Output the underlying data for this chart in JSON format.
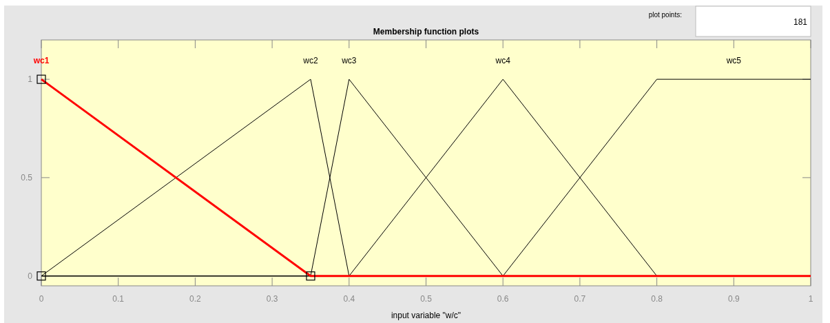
{
  "chart_data": {
    "type": "line",
    "title": "Membership function plots",
    "xlabel": "input variable \"w/c\"",
    "annotations": [
      "plot points:",
      "181"
    ],
    "xlim": [
      0,
      1
    ],
    "xticks": [
      0,
      0.1,
      0.2,
      0.3,
      0.4,
      0.5,
      0.6,
      0.7,
      0.8,
      0.9,
      1
    ],
    "ylim": [
      -0.05,
      1.2
    ],
    "yticks": [
      0,
      0.5,
      1
    ],
    "grid": false,
    "line_style": "solid",
    "series": [
      {
        "name": "wc2",
        "color": "#000000",
        "x": [
          0,
          0.35,
          0.4,
          1
        ],
        "values": [
          0,
          1,
          0,
          0
        ]
      },
      {
        "name": "wc3",
        "color": "#000000",
        "x": [
          0,
          0.35,
          0.4,
          0.6,
          1
        ],
        "values": [
          0,
          0,
          1,
          0,
          0
        ]
      },
      {
        "name": "wc4",
        "color": "#000000",
        "x": [
          0,
          0.4,
          0.6,
          0.8,
          1
        ],
        "values": [
          0,
          0,
          1,
          0,
          0
        ]
      },
      {
        "name": "wc5",
        "color": "#000000",
        "x": [
          0,
          0.6,
          0.8,
          1
        ],
        "values": [
          0,
          0,
          1,
          1
        ]
      },
      {
        "name": "wc1",
        "color": "#ff0000",
        "x": [
          0,
          0.35,
          1
        ],
        "values": [
          1,
          0,
          0
        ]
      },
      {
        "type": "scatter",
        "marker": "square",
        "color": "#000000",
        "x": [
          0,
          0,
          0.35
        ],
        "values": [
          1,
          0,
          0
        ]
      }
    ]
  }
}
